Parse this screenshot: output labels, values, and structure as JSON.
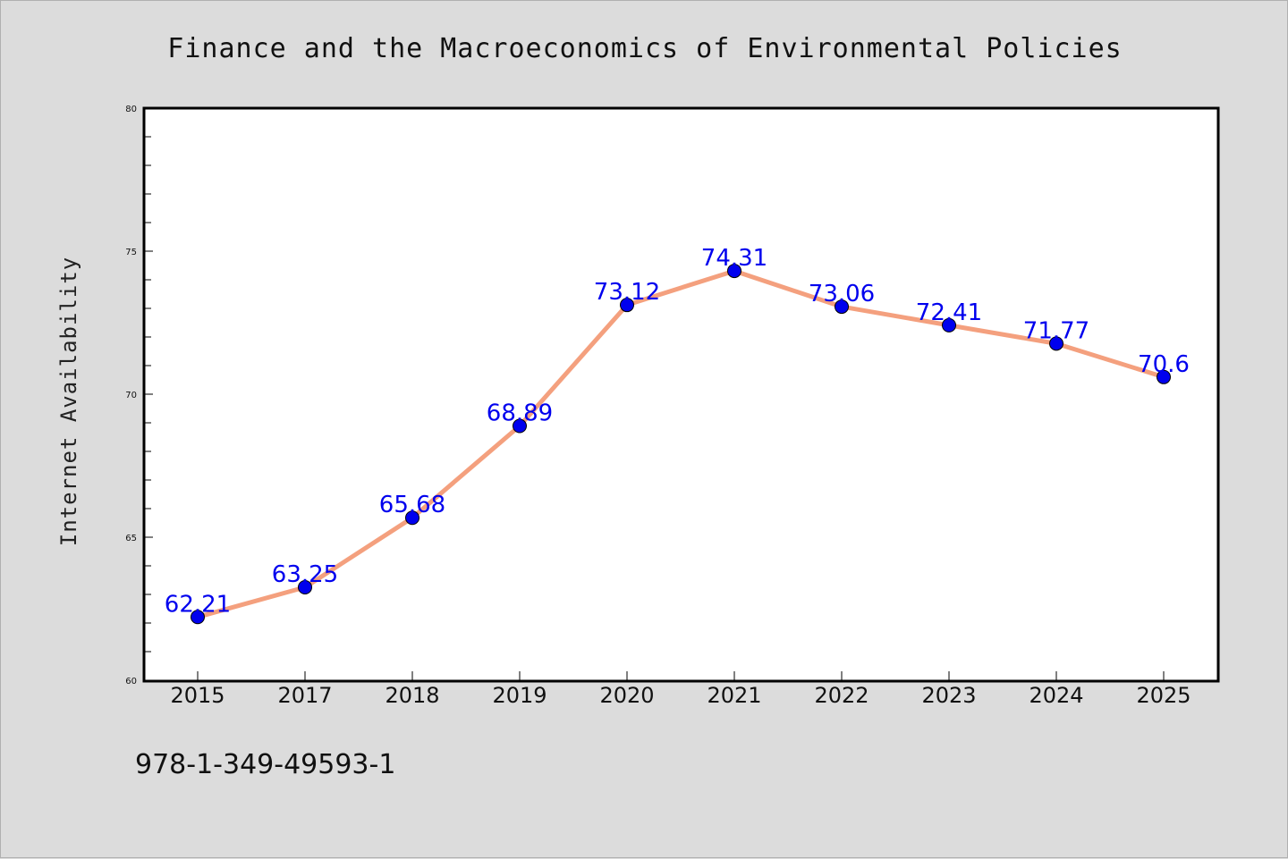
{
  "chart_data": {
    "type": "line",
    "title": "Finance and the Macroeconomics of Environmental Policies",
    "xlabel": "",
    "ylabel": "Internet Availability",
    "categories": [
      "2015",
      "2017",
      "2018",
      "2019",
      "2020",
      "2021",
      "2022",
      "2023",
      "2024",
      "2025"
    ],
    "series": [
      {
        "values": [
          62.21,
          63.25,
          65.68,
          68.89,
          73.12,
          74.31,
          73.06,
          72.41,
          71.77,
          70.6
        ],
        "data_labels": [
          "62.21",
          "63.25",
          "65.68",
          "68.89",
          "73.12",
          "74.31",
          "73.06",
          "72.41",
          "71.77",
          "70.6"
        ]
      }
    ],
    "ylim": [
      60,
      80
    ],
    "yticks": [
      60,
      65,
      70,
      75,
      80
    ],
    "grid": false,
    "colors": {
      "line": "#f4a07e",
      "marker": "#0000ee",
      "label": "#0000ee",
      "plot_bg": "#ffffff",
      "page_bg": "#dcdcdc"
    }
  },
  "footer": {
    "isbn": "978-1-349-49593-1"
  }
}
